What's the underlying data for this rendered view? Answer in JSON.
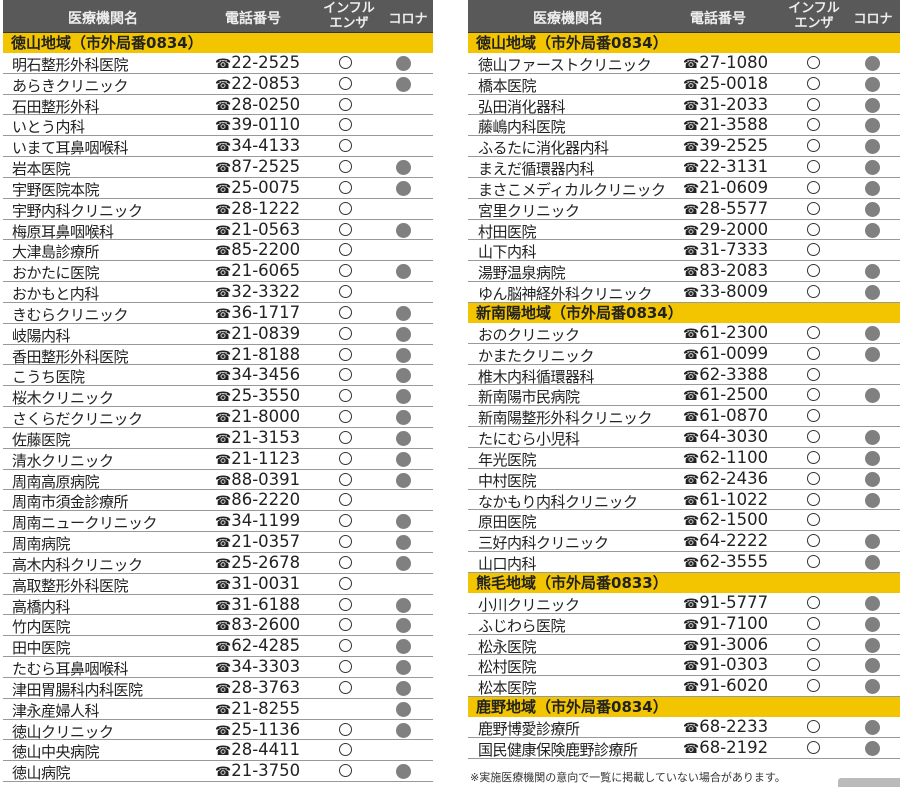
{
  "headers": {
    "name": "医療機関名",
    "phone": "電話番号",
    "influenza_line1": "インフル",
    "influenza_line2": "エンザ",
    "corona": "コロナ"
  },
  "phone_icon": "☎",
  "colors": {
    "header_bg": "#595959",
    "section_bg": "#f2c500",
    "corona_dot": "#808080"
  },
  "tables": [
    {
      "sections": [
        {
          "title": "徳山地域（市外局番0834）",
          "rows": [
            {
              "name": "明石整形外科医院",
              "phone": "22-2525",
              "influenza": true,
              "corona": true
            },
            {
              "name": "あらきクリニック",
              "phone": "22-0853",
              "influenza": true,
              "corona": true
            },
            {
              "name": "石田整形外科",
              "phone": "28-0250",
              "influenza": true,
              "corona": false
            },
            {
              "name": "いとう内科",
              "phone": "39-0110",
              "influenza": true,
              "corona": false
            },
            {
              "name": "いまて耳鼻咽喉科",
              "phone": "34-4133",
              "influenza": true,
              "corona": false
            },
            {
              "name": "岩本医院",
              "phone": "87-2525",
              "influenza": true,
              "corona": true
            },
            {
              "name": "宇野医院本院",
              "phone": "25-0075",
              "influenza": true,
              "corona": true
            },
            {
              "name": "宇野内科クリニック",
              "phone": "28-1222",
              "influenza": true,
              "corona": false
            },
            {
              "name": "梅原耳鼻咽喉科",
              "phone": "21-0563",
              "influenza": true,
              "corona": true
            },
            {
              "name": "大津島診療所",
              "phone": "85-2200",
              "influenza": true,
              "corona": false
            },
            {
              "name": "おかたに医院",
              "phone": "21-6065",
              "influenza": true,
              "corona": true
            },
            {
              "name": "おかもと内科",
              "phone": "32-3322",
              "influenza": true,
              "corona": false
            },
            {
              "name": "きむらクリニック",
              "phone": "36-1717",
              "influenza": true,
              "corona": true
            },
            {
              "name": "岐陽内科",
              "phone": "21-0839",
              "influenza": true,
              "corona": true
            },
            {
              "name": "香田整形外科医院",
              "phone": "21-8188",
              "influenza": true,
              "corona": true
            },
            {
              "name": "こうち医院",
              "phone": "34-3456",
              "influenza": true,
              "corona": true
            },
            {
              "name": "桜木クリニック",
              "phone": "25-3550",
              "influenza": true,
              "corona": true
            },
            {
              "name": "さくらだクリニック",
              "phone": "21-8000",
              "influenza": true,
              "corona": true
            },
            {
              "name": "佐藤医院",
              "phone": "21-3153",
              "influenza": true,
              "corona": true
            },
            {
              "name": "清水クリニック",
              "phone": "21-1123",
              "influenza": true,
              "corona": true
            },
            {
              "name": "周南高原病院",
              "phone": "88-0391",
              "influenza": true,
              "corona": true
            },
            {
              "name": "周南市須金診療所",
              "phone": "86-2220",
              "influenza": true,
              "corona": false
            },
            {
              "name": "周南ニュークリニック",
              "phone": "34-1199",
              "influenza": true,
              "corona": true
            },
            {
              "name": "周南病院",
              "phone": "21-0357",
              "influenza": true,
              "corona": true
            },
            {
              "name": "高木内科クリニック",
              "phone": "25-2678",
              "influenza": true,
              "corona": true
            },
            {
              "name": "高取整形外科医院",
              "phone": "31-0031",
              "influenza": true,
              "corona": false
            },
            {
              "name": "高橋内科",
              "phone": "31-6188",
              "influenza": true,
              "corona": true
            },
            {
              "name": "竹内医院",
              "phone": "83-2600",
              "influenza": true,
              "corona": true
            },
            {
              "name": "田中医院",
              "phone": "62-4285",
              "influenza": true,
              "corona": true
            },
            {
              "name": "たむら耳鼻咽喉科",
              "phone": "34-3303",
              "influenza": true,
              "corona": true
            },
            {
              "name": "津田胃腸科内科医院",
              "phone": "28-3763",
              "influenza": true,
              "corona": true
            },
            {
              "name": "津永産婦人科",
              "phone": "21-8255",
              "influenza": false,
              "corona": true
            },
            {
              "name": "徳山クリニック",
              "phone": "25-1136",
              "influenza": true,
              "corona": true
            },
            {
              "name": "徳山中央病院",
              "phone": "28-4411",
              "influenza": true,
              "corona": false
            },
            {
              "name": "徳山病院",
              "phone": "21-3750",
              "influenza": true,
              "corona": true
            }
          ]
        }
      ]
    },
    {
      "sections": [
        {
          "title": "徳山地域（市外局番0834）",
          "rows": [
            {
              "name": "徳山ファーストクリニック",
              "phone": "27-1080",
              "influenza": true,
              "corona": true
            },
            {
              "name": "橋本医院",
              "phone": "25-0018",
              "influenza": true,
              "corona": true
            },
            {
              "name": "弘田消化器科",
              "phone": "31-2033",
              "influenza": true,
              "corona": true
            },
            {
              "name": "藤嶋内科医院",
              "phone": "21-3588",
              "influenza": true,
              "corona": true
            },
            {
              "name": "ふるたに消化器内科",
              "phone": "39-2525",
              "influenza": true,
              "corona": true
            },
            {
              "name": "まえだ循環器内科",
              "phone": "22-3131",
              "influenza": true,
              "corona": true
            },
            {
              "name": "まさこメディカルクリニック",
              "phone": "21-0609",
              "influenza": true,
              "corona": true
            },
            {
              "name": "宮里クリニック",
              "phone": "28-5577",
              "influenza": true,
              "corona": true
            },
            {
              "name": "村田医院",
              "phone": "29-2000",
              "influenza": true,
              "corona": true
            },
            {
              "name": "山下内科",
              "phone": "31-7333",
              "influenza": true,
              "corona": false
            },
            {
              "name": "湯野温泉病院",
              "phone": "83-2083",
              "influenza": true,
              "corona": true
            },
            {
              "name": "ゆん脳神経外科クリニック",
              "phone": "33-8009",
              "influenza": true,
              "corona": true
            }
          ]
        },
        {
          "title": "新南陽地域（市外局番0834）",
          "rows": [
            {
              "name": "おのクリニック",
              "phone": "61-2300",
              "influenza": true,
              "corona": true
            },
            {
              "name": "かまたクリニック",
              "phone": "61-0099",
              "influenza": true,
              "corona": true
            },
            {
              "name": "椎木内科循環器科",
              "phone": "62-3388",
              "influenza": true,
              "corona": false
            },
            {
              "name": "新南陽市民病院",
              "phone": "61-2500",
              "influenza": true,
              "corona": true
            },
            {
              "name": "新南陽整形外科クリニック",
              "phone": "61-0870",
              "influenza": true,
              "corona": false
            },
            {
              "name": "たにむら小児科",
              "phone": "64-3030",
              "influenza": true,
              "corona": true
            },
            {
              "name": "年光医院",
              "phone": "62-1100",
              "influenza": true,
              "corona": true
            },
            {
              "name": "中村医院",
              "phone": "62-2436",
              "influenza": true,
              "corona": true
            },
            {
              "name": "なかもり内科クリニック",
              "phone": "61-1022",
              "influenza": true,
              "corona": true
            },
            {
              "name": "原田医院",
              "phone": "62-1500",
              "influenza": true,
              "corona": false
            },
            {
              "name": "三好内科クリニック",
              "phone": "64-2222",
              "influenza": true,
              "corona": true
            },
            {
              "name": "山口内科",
              "phone": "62-3555",
              "influenza": true,
              "corona": true
            }
          ]
        },
        {
          "title": "熊毛地域（市外局番0833）",
          "rows": [
            {
              "name": "小川クリニック",
              "phone": "91-5777",
              "influenza": true,
              "corona": true
            },
            {
              "name": "ふじわら医院",
              "phone": "91-7100",
              "influenza": true,
              "corona": true
            },
            {
              "name": "松永医院",
              "phone": "91-3006",
              "influenza": true,
              "corona": true
            },
            {
              "name": "松村医院",
              "phone": "91-0303",
              "influenza": true,
              "corona": true
            },
            {
              "name": "松本医院",
              "phone": "91-6020",
              "influenza": true,
              "corona": true
            }
          ]
        },
        {
          "title": "鹿野地域（市外局番0834）",
          "rows": [
            {
              "name": "鹿野博愛診療所",
              "phone": "68-2233",
              "influenza": true,
              "corona": true
            },
            {
              "name": "国民健康保険鹿野診療所",
              "phone": "68-2192",
              "influenza": true,
              "corona": true
            }
          ]
        }
      ]
    }
  ],
  "footnote": "※実施医療機関の意向で一覧に掲載していない場合があります。"
}
